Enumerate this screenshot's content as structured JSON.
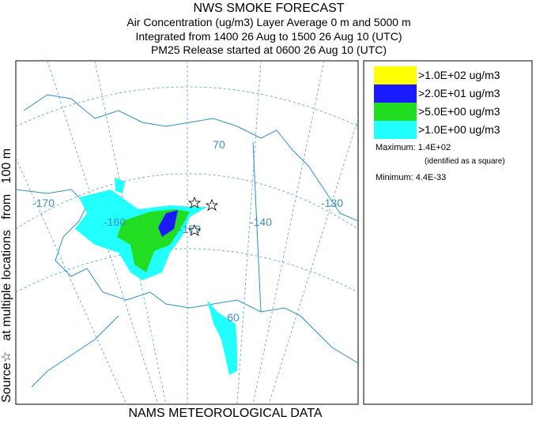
{
  "header": {
    "title": "NWS SMOKE FORECAST",
    "lines": [
      "Air Concentration (ug/m3) Layer Average    0 m and  5000 m",
      "Integrated from 1400 26 Aug to 1500 26 Aug 10 (UTC)",
      "PM25 Release started at 0600 26 Aug 10 (UTC)"
    ]
  },
  "side_label": "Source☆   at multiple locations   from   100 m",
  "footer": "NAMS METEOROLOGICAL DATA",
  "map": {
    "labels": [
      "-170",
      "-160",
      "-150",
      "-140",
      "-130",
      "70",
      "60"
    ]
  },
  "legend": {
    "entries": [
      {
        "label": ">1.0E+02 ug/m3",
        "color": "#ffff00"
      },
      {
        "label": ">2.0E+01 ug/m3",
        "color": "#1a1aff"
      },
      {
        "label": ">5.0E+00 ug/m3",
        "color": "#22dd22"
      },
      {
        "label": ">1.0E+00 ug/m3",
        "color": "#22ffff"
      }
    ],
    "maximum": "Maximum: 1.4E+02",
    "maximum_note": "(identified as a square)",
    "minimum": "Minimum: 4.4E-33"
  }
}
